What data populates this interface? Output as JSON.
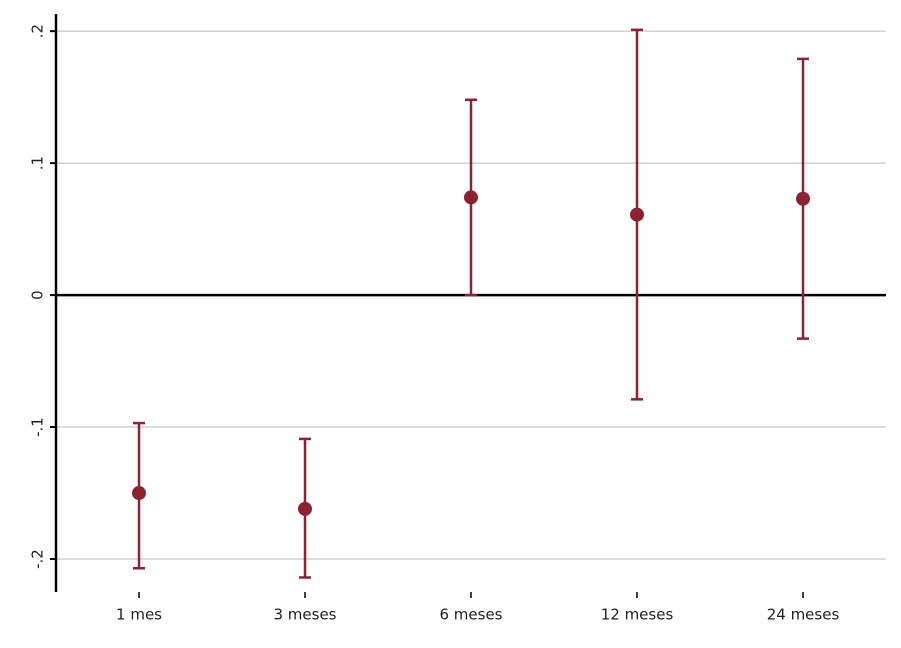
{
  "chart_data": {
    "type": "errorbar",
    "categories": [
      "1 mes",
      "3 meses",
      "6 meses",
      "12 meses",
      "24 meses"
    ],
    "series": [
      {
        "color": "#8b2332",
        "values": [
          -0.15,
          -0.162,
          0.074,
          0.061,
          0.073
        ],
        "lower": [
          -0.207,
          -0.214,
          0.0,
          -0.079,
          -0.033
        ],
        "upper": [
          -0.097,
          -0.109,
          0.148,
          0.201,
          0.179
        ]
      }
    ],
    "ylim": [
      -0.225,
      0.213
    ],
    "yticks": [
      {
        "value": -0.2,
        "label": "-.2"
      },
      {
        "value": -0.1,
        "label": "-.1"
      },
      0,
      {
        "value": 0.1,
        "label": ".1"
      },
      {
        "value": 0.2,
        "label": ".2"
      }
    ],
    "grid": true,
    "reference_line": 0
  }
}
